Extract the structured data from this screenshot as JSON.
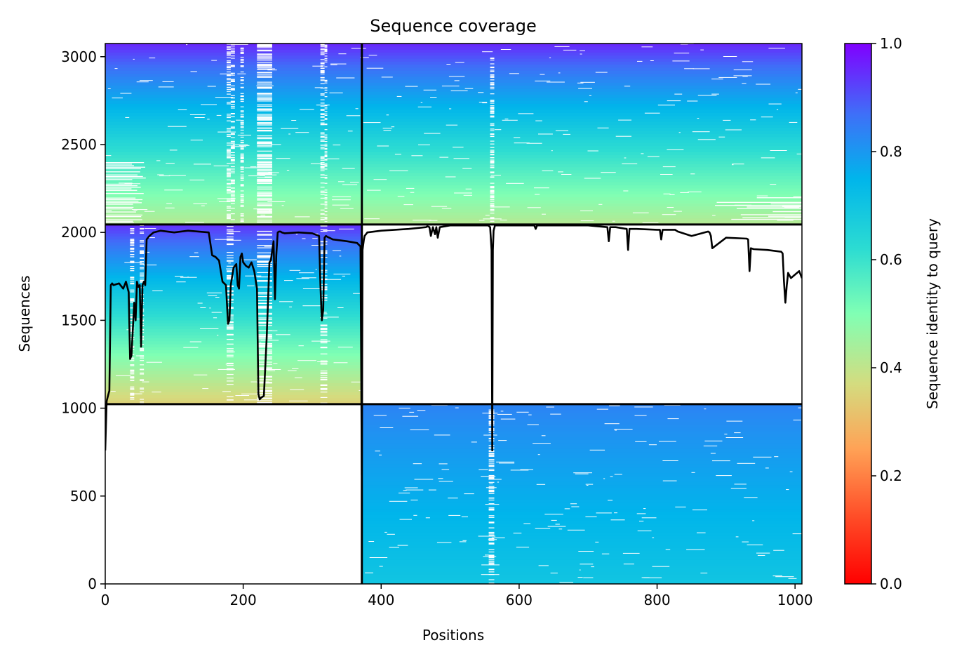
{
  "chart_data": {
    "type": "heatmap",
    "title": "Sequence coverage",
    "xlabel": "Positions",
    "ylabel": "Sequences",
    "xlim": [
      0,
      1010
    ],
    "ylim": [
      0,
      3075
    ],
    "xticks": [
      0,
      200,
      400,
      600,
      800,
      1000
    ],
    "yticks": [
      0,
      500,
      1000,
      1500,
      2000,
      2500,
      3000
    ],
    "grid": false,
    "colormap": "rainbow_r",
    "colorbar": {
      "label": "Sequence identity to query",
      "range": [
        0,
        1
      ],
      "ticks": [
        0.0,
        0.2,
        0.4,
        0.6,
        0.8,
        1.0
      ],
      "tick_labels": [
        "0.0",
        "0.2",
        "0.4",
        "0.6",
        "0.8",
        "1.0"
      ]
    },
    "chain_boundaries": {
      "vertical_position": 372,
      "horizontal_sequences": [
        1023,
        2045
      ]
    },
    "blocks": [
      {
        "name": "block-top-left",
        "x_range": [
          0,
          372
        ],
        "y_range": [
          2045,
          3075
        ],
        "identity_bottom": 0.42,
        "identity_top": 0.96,
        "gap_columns": [
          {
            "x": [
              176,
              182
            ],
            "density": 0.6
          },
          {
            "x": [
              182,
              188
            ],
            "density": 0.6
          },
          {
            "x": [
              196,
              201
            ],
            "density": 0.7
          },
          {
            "x": [
              220,
              242
            ],
            "density": 0.95
          },
          {
            "x": [
              312,
              318
            ],
            "density": 0.55
          },
          {
            "x": [
              318,
              322
            ],
            "density": 0.55
          }
        ],
        "left_gap_x": [
          0,
          60
        ],
        "left_gap_y": [
          2045,
          2400
        ]
      },
      {
        "name": "block-top-right",
        "x_range": [
          372,
          1010
        ],
        "y_range": [
          2045,
          3075
        ],
        "identity_bottom": 0.42,
        "identity_top": 0.96,
        "gap_columns": [
          {
            "x": [
              558,
              564
            ],
            "density": 0.7
          }
        ],
        "right_gap_x": [
          880,
          1010
        ],
        "right_gap_y": [
          2045,
          2200
        ]
      },
      {
        "name": "block-middle-left",
        "x_range": [
          0,
          372
        ],
        "y_range": [
          1023,
          2045
        ],
        "identity_bottom": 0.35,
        "identity_top": 0.95,
        "gap_columns": [
          {
            "x": [
              36,
              42
            ],
            "density": 0.6
          },
          {
            "x": [
              50,
              56
            ],
            "density": 0.5
          },
          {
            "x": [
              176,
              186
            ],
            "density": 0.5
          },
          {
            "x": [
              220,
              242
            ],
            "density": 0.6
          },
          {
            "x": [
              312,
              322
            ],
            "density": 0.5
          }
        ]
      },
      {
        "name": "block-bottom-right",
        "x_range": [
          372,
          1010
        ],
        "y_range": [
          0,
          1023
        ],
        "identity_bottom": 0.7,
        "identity_top": 0.84,
        "gap_columns": [
          {
            "x": [
              556,
              564
            ],
            "density": 0.7
          }
        ]
      }
    ],
    "coverage_line": {
      "x": [
        0,
        2,
        4,
        6,
        8,
        10,
        12,
        20,
        26,
        30,
        34,
        36,
        38,
        42,
        44,
        46,
        48,
        50,
        52,
        54,
        56,
        58,
        60,
        64,
        70,
        80,
        100,
        120,
        150,
        155,
        160,
        165,
        170,
        175,
        178,
        180,
        182,
        186,
        190,
        192,
        194,
        196,
        198,
        200,
        204,
        208,
        212,
        216,
        220,
        222,
        224,
        226,
        230,
        234,
        238,
        240,
        244,
        246,
        248,
        250,
        252,
        254,
        256,
        260,
        280,
        300,
        310,
        312,
        314,
        316,
        318,
        320,
        322,
        330,
        350,
        365,
        370,
        372,
        373,
        374,
        375,
        376,
        380,
        400,
        440,
        465,
        467,
        470,
        472,
        475,
        478,
        480,
        482,
        485,
        500,
        520,
        550,
        555,
        558,
        560,
        561,
        562,
        563,
        565,
        570,
        580,
        600,
        622,
        624,
        626,
        640,
        700,
        728,
        730,
        732,
        740,
        756,
        758,
        760,
        770,
        800,
        804,
        806,
        808,
        820,
        826,
        828,
        830,
        850,
        874,
        876,
        878,
        880,
        900,
        930,
        932,
        934,
        936,
        940,
        960,
        980,
        982,
        984,
        986,
        988,
        990,
        994,
        1000,
        1006,
        1010
      ],
      "y": [
        760,
        1040,
        1070,
        1100,
        1700,
        1710,
        1700,
        1710,
        1680,
        1720,
        1660,
        1280,
        1300,
        1600,
        1500,
        1720,
        1690,
        1700,
        1350,
        1700,
        1720,
        1700,
        1960,
        1980,
        2000,
        2010,
        2000,
        2010,
        2000,
        1870,
        1860,
        1840,
        1720,
        1700,
        1480,
        1500,
        1700,
        1800,
        1820,
        1700,
        1680,
        1860,
        1880,
        1830,
        1810,
        1800,
        1830,
        1780,
        1680,
        1080,
        1050,
        1060,
        1070,
        1400,
        1830,
        1840,
        1950,
        1620,
        1870,
        2000,
        2005,
        2005,
        2000,
        1995,
        2000,
        1995,
        1980,
        1700,
        1500,
        1560,
        1970,
        1980,
        1975,
        1960,
        1950,
        1940,
        1920,
        620,
        1900,
        1930,
        1960,
        1980,
        2000,
        2010,
        2020,
        2030,
        2035,
        2030,
        1980,
        2030,
        1990,
        2030,
        1970,
        2030,
        2040,
        2040,
        2040,
        2040,
        2030,
        1900,
        760,
        1900,
        2010,
        2040,
        2040,
        2040,
        2040,
        2040,
        2020,
        2040,
        2040,
        2040,
        2030,
        1950,
        2030,
        2030,
        2020,
        1900,
        2020,
        2020,
        2015,
        2015,
        1960,
        2015,
        2015,
        2015,
        2010,
        2005,
        1980,
        2005,
        2000,
        1980,
        1910,
        1970,
        1965,
        1960,
        1780,
        1910,
        1905,
        1900,
        1890,
        1880,
        1720,
        1600,
        1700,
        1770,
        1740,
        1760,
        1780,
        1740
      ]
    }
  }
}
